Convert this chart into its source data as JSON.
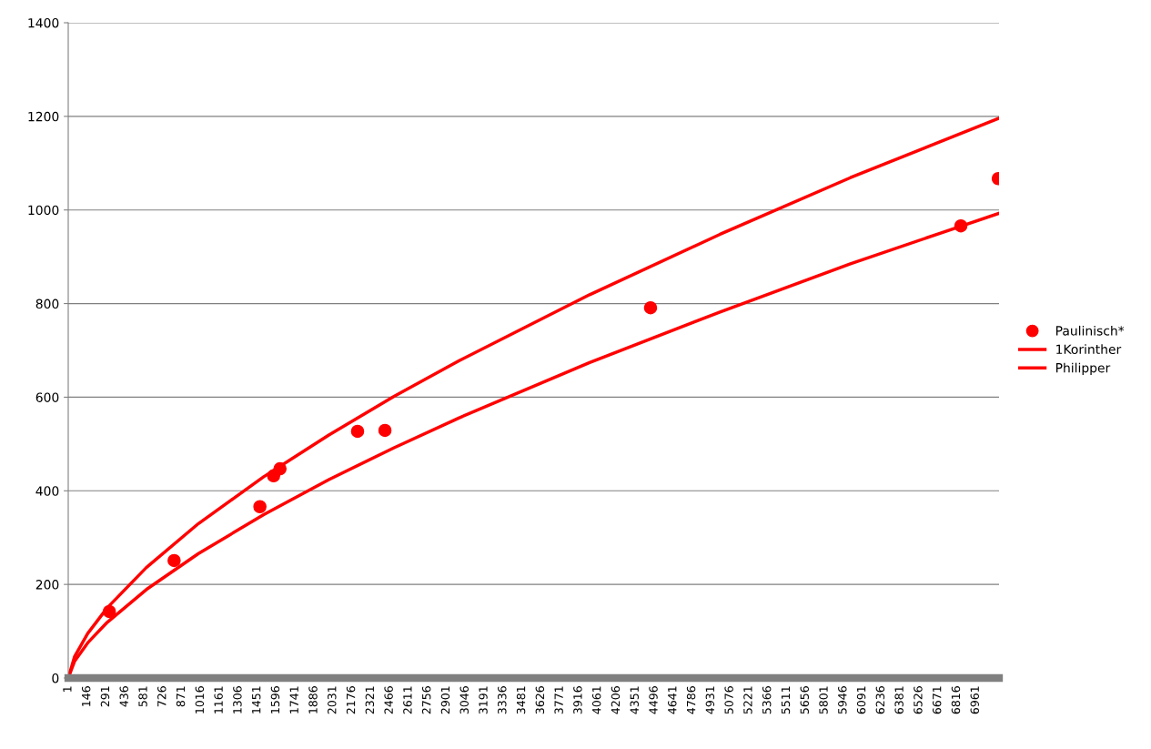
{
  "chart_data": {
    "type": "scatter",
    "series": [
      {
        "name": "Paulinisch*",
        "marker": "circle",
        "color": "#ff0000",
        "x": [
          316,
          813,
          1471,
          1576,
          1625,
          2220,
          2430,
          4467,
          6847,
          7134
        ],
        "values": [
          142,
          251,
          366,
          432,
          447,
          527,
          529,
          791,
          966,
          1067
        ]
      },
      {
        "name": "1Korinther",
        "type": "line",
        "line_style": "solid",
        "color": "#ff0000",
        "x": [
          1,
          50,
          150,
          300,
          600,
          1000,
          1500,
          2000,
          2500,
          3000,
          4000,
          5000,
          6000,
          7140
        ],
        "values": [
          0,
          46,
          95,
          150,
          236,
          330,
          430,
          519,
          602,
          678,
          819,
          948,
          1069,
          1196
        ]
      },
      {
        "name": "Philipper",
        "type": "line",
        "line_style": "solid",
        "color": "#ff0000",
        "x": [
          1,
          50,
          150,
          300,
          600,
          1000,
          1500,
          2000,
          2500,
          3000,
          4000,
          5000,
          6000,
          7140
        ],
        "values": [
          0,
          36,
          75,
          119,
          189,
          266,
          349,
          424,
          492,
          556,
          674,
          782,
          885,
          993
        ]
      }
    ],
    "xlim": [
      1,
      7140
    ],
    "xticks": [
      1,
      146,
      291,
      436,
      581,
      726,
      871,
      1016,
      1161,
      1306,
      1451,
      1596,
      1741,
      1886,
      2031,
      2176,
      2321,
      2466,
      2611,
      2756,
      2901,
      3046,
      3191,
      3336,
      3481,
      3626,
      3771,
      3916,
      4061,
      4206,
      4351,
      4496,
      4641,
      4786,
      4931,
      5076,
      5221,
      5366,
      5511,
      5656,
      5801,
      5946,
      6091,
      6236,
      6381,
      6526,
      6671,
      6816,
      6961
    ],
    "ylim": [
      0,
      1400
    ],
    "yticks": [
      0,
      200,
      400,
      600,
      800,
      1000,
      1200,
      1400
    ],
    "grid": "y",
    "legend": "right"
  }
}
